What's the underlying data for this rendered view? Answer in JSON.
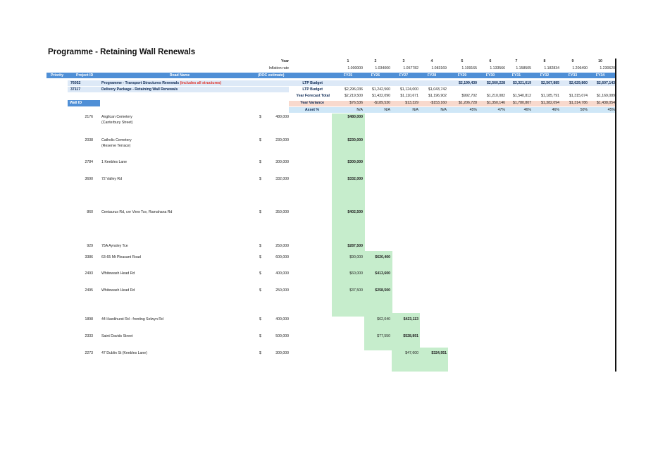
{
  "title": "Programme - Retaining Wall Renewals",
  "top_labels": {
    "year": "Year",
    "inflation": "Inflation rate"
  },
  "years": [
    "1",
    "2",
    "3",
    "4",
    "5",
    "6",
    "7",
    "8",
    "9",
    "10"
  ],
  "inflation": [
    "1.000000",
    "1.034000",
    "1.057782",
    "1.083169",
    "1.109165",
    "1.133566",
    "1.158505",
    "1.182834",
    "1.206490",
    "1.230620"
  ],
  "header": {
    "priority": "Priority",
    "project_id": "Project ID",
    "road_name": "Road Name",
    "estimate": "(ROC estimate)",
    "fy": [
      "FY25",
      "FY26",
      "FY27",
      "FY28",
      "FY29",
      "FY30",
      "FY31",
      "FY32",
      "FY33",
      "FY34"
    ]
  },
  "programme_row": {
    "id": "76052",
    "name": "Programme - Transport Structures Renewals",
    "note": "(includes all structures)",
    "label": "LTP Budget",
    "values": [
      "",
      "",
      "",
      "",
      "$2,199,430",
      "$2,560,228",
      "$3,321,619",
      "$2,567,885",
      "$2,629,860",
      "$2,607,143"
    ]
  },
  "package_row": {
    "id": "37117",
    "name": "Delivery Package - Retaining Wall Renewals",
    "label": "LTP Budget",
    "values": [
      "$2,296,036",
      "$1,242,560",
      "$1,124,000",
      "$1,043,742",
      "",
      "",
      "",
      "",
      "",
      ""
    ]
  },
  "forecast_row": {
    "label": "Year Forecast Total",
    "values": [
      "$2,219,500",
      "$1,432,090",
      "$1,110,671",
      "$1,196,902",
      "$992,702",
      "$1,210,082",
      "$1,540,812",
      "$1,185,791",
      "$1,315,074",
      "$1,169,089"
    ]
  },
  "wall_id_label": "Wall ID",
  "variance_row": {
    "label": "Year Variance",
    "values": [
      "$76,536",
      "-$189,530",
      "$13,329",
      "-$153,160",
      "$1,206,728",
      "$1,350,146",
      "$1,780,807",
      "$1,382,094",
      "$1,314,786",
      "$1,438,054"
    ]
  },
  "asset_row": {
    "label": "Asset %",
    "values": [
      "N/A",
      "N/A",
      "N/A",
      "N/A",
      "45%",
      "47%",
      "46%",
      "46%",
      "50%",
      "45%"
    ]
  },
  "walls": [
    {
      "id": "2176",
      "road": "Anglican Cemetery",
      "road2": "(Canterbury Street)",
      "cur": "$",
      "est": "480,000",
      "cells": [
        "$480,000",
        "",
        "",
        ""
      ],
      "bold": [
        true,
        false,
        false,
        false
      ]
    },
    {
      "id": "2038",
      "road": "Catholic Cemetery",
      "road2": "(Reserve Terrace)",
      "cur": "$",
      "est": "230,000",
      "cells": [
        "$230,000",
        "",
        "",
        ""
      ],
      "bold": [
        true,
        false,
        false,
        false
      ]
    },
    {
      "id": "2784",
      "road": "1 Keebles Lane",
      "road2": "",
      "cur": "$",
      "est": "300,000",
      "cells": [
        "$300,000",
        "",
        "",
        ""
      ],
      "bold": [
        true,
        false,
        false,
        false
      ]
    },
    {
      "id": "3690",
      "road": "72 Valley Rd",
      "road2": "",
      "cur": "$",
      "est": "332,000",
      "cells": [
        "$332,000",
        "",
        "",
        ""
      ],
      "bold": [
        true,
        false,
        false,
        false
      ]
    },
    {
      "id": "860",
      "road": "Centaurus Rd, cnr View Tce, Ramahana Rd",
      "road2": "",
      "cur": "$",
      "est": "350,000",
      "cells": [
        "$402,500",
        "",
        "",
        ""
      ],
      "bold": [
        true,
        false,
        false,
        false
      ]
    },
    {
      "id": "929",
      "road": "75A Aynsley Tce",
      "road2": "",
      "cur": "$",
      "est": "250,000",
      "cells": [
        "$287,500",
        "",
        "",
        ""
      ],
      "bold": [
        true,
        false,
        false,
        false
      ]
    },
    {
      "id": "3386",
      "road": "63-65 Mt Pleasant Road",
      "road2": "",
      "cur": "$",
      "est": "600,000",
      "cells": [
        "$90,000",
        "$620,400",
        "",
        ""
      ],
      "bold": [
        false,
        true,
        false,
        false
      ]
    },
    {
      "id": "2493",
      "road": "Whitewash Head Rd",
      "road2": "",
      "cur": "$",
      "est": "400,000",
      "cells": [
        "$60,000",
        "$413,600",
        "",
        ""
      ],
      "bold": [
        false,
        true,
        false,
        false
      ]
    },
    {
      "id": "2495",
      "road": "Whitewash Head Rd",
      "road2": "",
      "cur": "$",
      "est": "250,000",
      "cells": [
        "$37,500",
        "$258,500",
        "",
        ""
      ],
      "bold": [
        false,
        true,
        false,
        false
      ]
    },
    {
      "id": "1898",
      "road": "44 Hawkhurst Rd - fronting Selwyn Rd",
      "road2": "",
      "cur": "$",
      "est": "400,000",
      "cells": [
        "",
        "$62,040",
        "$423,113",
        ""
      ],
      "bold": [
        false,
        false,
        true,
        false
      ]
    },
    {
      "id": "2333",
      "road": "Saint Davids Street",
      "road2": "",
      "cur": "$",
      "est": "500,000",
      "cells": [
        "",
        "$77,550",
        "$528,891",
        ""
      ],
      "bold": [
        false,
        false,
        true,
        false
      ]
    },
    {
      "id": "2273",
      "road": "47 Dublin St (Keebles Lane)",
      "road2": "",
      "cur": "$",
      "est": "300,000",
      "cells": [
        "",
        "",
        "$47,600",
        "$324,951"
      ],
      "bold": [
        false,
        false,
        false,
        true
      ]
    }
  ],
  "colors": {
    "header_blue": "#4f8fd6",
    "light_blue": "#dde9f7",
    "cyan": "#cfe7f7",
    "pink": "#f8d9cd",
    "green": "#c6edcc",
    "red_note": "#e0322a"
  }
}
